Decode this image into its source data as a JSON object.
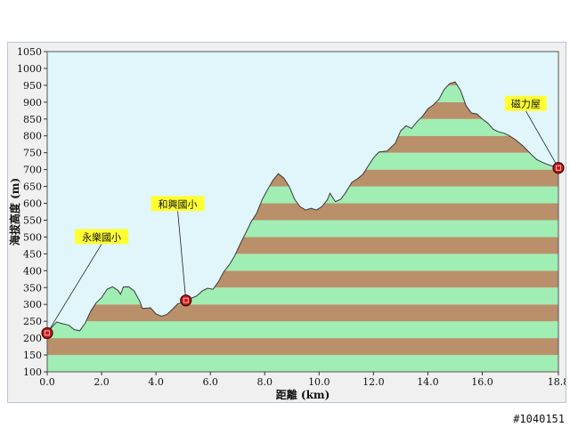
{
  "watermark": "#1040151",
  "chart_data": {
    "type": "area",
    "title": "",
    "xlabel": "距離 (km)",
    "ylabel": "海拔高度 (m)",
    "xlim": [
      0,
      18.8
    ],
    "ylim": [
      100,
      1050
    ],
    "x_ticks": [
      "0.0",
      "2.0",
      "4.0",
      "6.0",
      "8.0",
      "10.0",
      "12.0",
      "14.0",
      "16.0",
      "18.8"
    ],
    "x_tick_values": [
      0,
      2,
      4,
      6,
      8,
      10,
      12,
      14,
      16,
      18.8
    ],
    "y_ticks": [
      100,
      150,
      200,
      250,
      300,
      350,
      400,
      450,
      500,
      550,
      600,
      650,
      700,
      750,
      800,
      850,
      900,
      950,
      1000,
      1050
    ],
    "band_colors": [
      "#a0eeb4",
      "#b9906a"
    ],
    "plot_bg": "#e0f6fb",
    "profile": [
      [
        0.0,
        215
      ],
      [
        0.2,
        235
      ],
      [
        0.35,
        248
      ],
      [
        0.5,
        244
      ],
      [
        0.8,
        238
      ],
      [
        1.0,
        225
      ],
      [
        1.2,
        222
      ],
      [
        1.4,
        245
      ],
      [
        1.6,
        280
      ],
      [
        1.8,
        305
      ],
      [
        2.0,
        320
      ],
      [
        2.2,
        345
      ],
      [
        2.4,
        352
      ],
      [
        2.6,
        342
      ],
      [
        2.7,
        330
      ],
      [
        2.8,
        352
      ],
      [
        3.0,
        352
      ],
      [
        3.2,
        340
      ],
      [
        3.4,
        310
      ],
      [
        3.5,
        288
      ],
      [
        3.8,
        290
      ],
      [
        4.0,
        272
      ],
      [
        4.2,
        265
      ],
      [
        4.4,
        270
      ],
      [
        4.6,
        285
      ],
      [
        4.8,
        302
      ],
      [
        5.0,
        305
      ],
      [
        5.2,
        315
      ],
      [
        5.5,
        325
      ],
      [
        5.7,
        340
      ],
      [
        5.9,
        348
      ],
      [
        6.1,
        345
      ],
      [
        6.3,
        368
      ],
      [
        6.5,
        398
      ],
      [
        6.7,
        418
      ],
      [
        6.9,
        445
      ],
      [
        7.1,
        480
      ],
      [
        7.3,
        512
      ],
      [
        7.5,
        545
      ],
      [
        7.7,
        570
      ],
      [
        7.9,
        610
      ],
      [
        8.1,
        640
      ],
      [
        8.3,
        668
      ],
      [
        8.5,
        688
      ],
      [
        8.7,
        675
      ],
      [
        8.9,
        650
      ],
      [
        9.1,
        612
      ],
      [
        9.3,
        590
      ],
      [
        9.5,
        580
      ],
      [
        9.7,
        585
      ],
      [
        9.9,
        580
      ],
      [
        10.1,
        590
      ],
      [
        10.3,
        610
      ],
      [
        10.4,
        630
      ],
      [
        10.6,
        605
      ],
      [
        10.8,
        612
      ],
      [
        11.0,
        635
      ],
      [
        11.2,
        662
      ],
      [
        11.4,
        672
      ],
      [
        11.6,
        685
      ],
      [
        11.8,
        710
      ],
      [
        12.0,
        735
      ],
      [
        12.2,
        752
      ],
      [
        12.5,
        755
      ],
      [
        12.8,
        778
      ],
      [
        13.0,
        815
      ],
      [
        13.2,
        830
      ],
      [
        13.4,
        822
      ],
      [
        13.6,
        842
      ],
      [
        13.8,
        858
      ],
      [
        14.0,
        880
      ],
      [
        14.2,
        892
      ],
      [
        14.4,
        908
      ],
      [
        14.6,
        938
      ],
      [
        14.8,
        955
      ],
      [
        15.0,
        960
      ],
      [
        15.2,
        935
      ],
      [
        15.4,
        890
      ],
      [
        15.6,
        868
      ],
      [
        15.8,
        865
      ],
      [
        16.0,
        850
      ],
      [
        16.2,
        838
      ],
      [
        16.4,
        820
      ],
      [
        16.6,
        812
      ],
      [
        16.8,
        808
      ],
      [
        17.0,
        800
      ],
      [
        17.2,
        790
      ],
      [
        17.5,
        770
      ],
      [
        17.8,
        745
      ],
      [
        18.0,
        730
      ],
      [
        18.2,
        722
      ],
      [
        18.4,
        715
      ],
      [
        18.6,
        710
      ],
      [
        18.8,
        705
      ]
    ],
    "markers": [
      {
        "name": "永樂國小",
        "x": 0.0,
        "y": 215,
        "label_x": 2.0,
        "label_y": 500
      },
      {
        "name": "和興國小",
        "x": 5.1,
        "y": 312,
        "label_x": 4.8,
        "label_y": 598
      },
      {
        "name": "磁力屋",
        "x": 18.8,
        "y": 705,
        "label_x": 17.6,
        "label_y": 895
      }
    ],
    "colors": {
      "marker_fill": "#c81818",
      "marker_stroke": "#400000",
      "label_bg": "#ffff33",
      "line": "#3a3a3a",
      "grid": "#ffffff"
    }
  }
}
